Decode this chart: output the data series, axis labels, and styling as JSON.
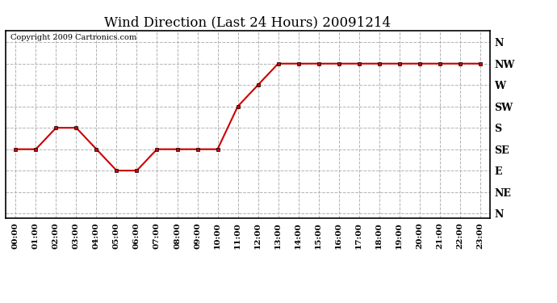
{
  "title": "Wind Direction (Last 24 Hours) 20091214",
  "copyright": "Copyright 2009 Cartronics.com",
  "background_color": "#ffffff",
  "line_color": "#cc0000",
  "grid_color": "#aaaaaa",
  "hours": [
    0,
    1,
    2,
    3,
    4,
    5,
    6,
    7,
    8,
    9,
    10,
    11,
    12,
    13,
    14,
    15,
    16,
    17,
    18,
    19,
    20,
    21,
    22,
    23
  ],
  "wind_values": [
    135,
    135,
    180,
    180,
    135,
    90,
    90,
    135,
    135,
    135,
    135,
    225,
    270,
    315,
    315,
    315,
    315,
    315,
    315,
    315,
    315,
    315,
    315,
    315
  ],
  "yticks": [
    360,
    315,
    270,
    225,
    180,
    135,
    90,
    45,
    0
  ],
  "ytick_labels": [
    "N",
    "NW",
    "W",
    "SW",
    "S",
    "SE",
    "E",
    "NE",
    "N"
  ],
  "xtick_labels": [
    "00:00",
    "01:00",
    "02:00",
    "03:00",
    "04:00",
    "05:00",
    "06:00",
    "07:00",
    "08:00",
    "09:00",
    "10:00",
    "11:00",
    "12:00",
    "13:00",
    "14:00",
    "15:00",
    "16:00",
    "17:00",
    "18:00",
    "19:00",
    "20:00",
    "21:00",
    "22:00",
    "23:00"
  ],
  "ylim": [
    -10,
    385
  ],
  "xlim": [
    -0.5,
    23.5
  ],
  "title_fontsize": 12,
  "copyright_fontsize": 7
}
